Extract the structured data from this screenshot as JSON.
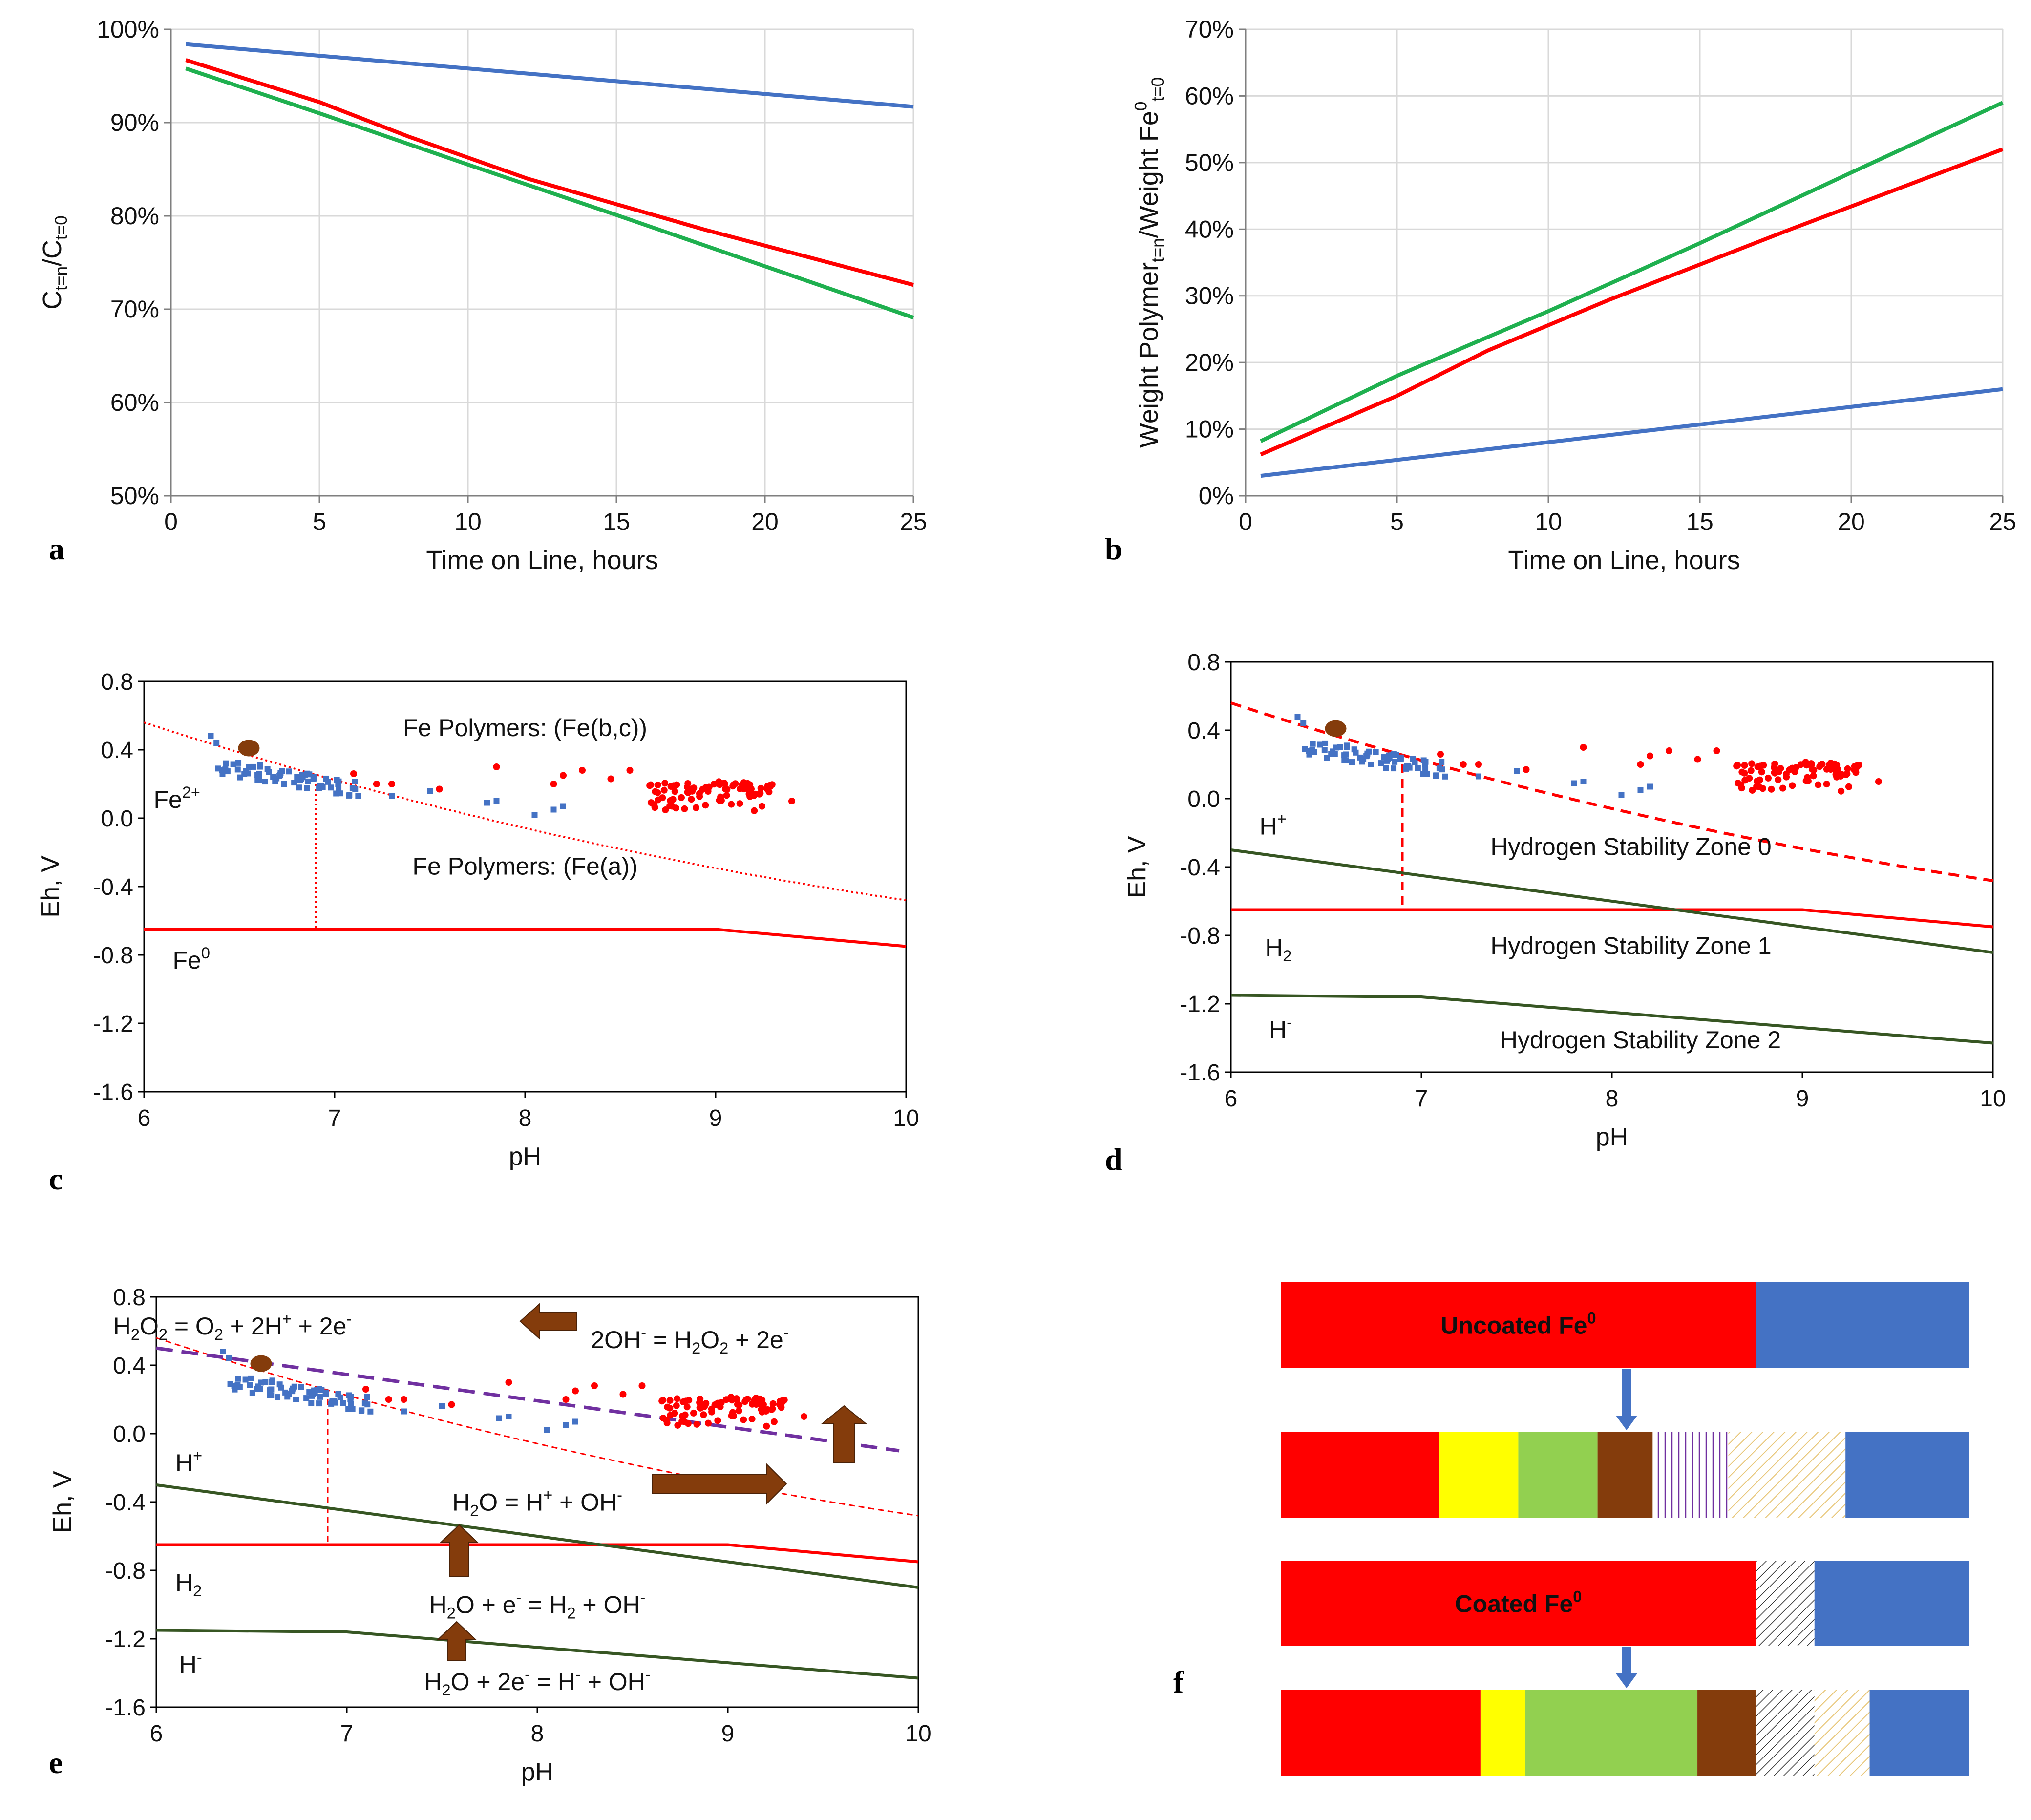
{
  "colors": {
    "blue": "#4472C4",
    "red": "#FF0000",
    "green": "#1FB04F",
    "darkgreen": "#375623",
    "purple": "#7030A0",
    "brown": "#843C0C",
    "yellow": "#FFFF00",
    "lightgreen": "#92D050",
    "gold": "#E8C77A",
    "grid": "#D9D9D9"
  },
  "chart_data": [
    {
      "id": "a",
      "type": "line",
      "panel_label": "a",
      "xlabel": "Time on Line, hours",
      "ylabel_parts": [
        "C",
        "t=n",
        "/C",
        "t=0"
      ],
      "xlim": [
        0,
        25
      ],
      "ylim": [
        50,
        100
      ],
      "xticks": [
        0,
        5,
        10,
        15,
        20,
        25
      ],
      "yticks": [
        50,
        60,
        70,
        80,
        90,
        100
      ],
      "ytick_labels": [
        "50%",
        "60%",
        "70%",
        "80%",
        "90%",
        "100%"
      ],
      "series": [
        {
          "name": "blue",
          "color": "#4472C4",
          "x": [
            0.5,
            25
          ],
          "y": [
            98.4,
            91.7
          ]
        },
        {
          "name": "red",
          "color": "#FF0000",
          "x": [
            0.5,
            5,
            8,
            12,
            18,
            25
          ],
          "y": [
            96.7,
            92.2,
            88.5,
            84,
            78.5,
            72.6
          ]
        },
        {
          "name": "green",
          "color": "#1FB04F",
          "x": [
            0.5,
            5,
            10,
            15,
            20,
            25
          ],
          "y": [
            95.8,
            91,
            85.5,
            80.1,
            74.6,
            69.1
          ]
        }
      ]
    },
    {
      "id": "b",
      "type": "line",
      "panel_label": "b",
      "xlabel": "Time on Line, hours",
      "ylabel_parts": [
        "Weight Polymer",
        "t=n",
        "/Weight Fe",
        "0",
        "t=0"
      ],
      "xlim": [
        0,
        25
      ],
      "ylim": [
        0,
        70
      ],
      "xticks": [
        0,
        5,
        10,
        15,
        20,
        25
      ],
      "yticks": [
        0,
        10,
        20,
        30,
        40,
        50,
        60,
        70
      ],
      "ytick_labels": [
        "0%",
        "10%",
        "20%",
        "30%",
        "40%",
        "50%",
        "60%",
        "70%"
      ],
      "series": [
        {
          "name": "green",
          "color": "#1FB04F",
          "x": [
            0.5,
            5,
            10,
            15,
            20,
            25
          ],
          "y": [
            8.2,
            18,
            27.7,
            37.9,
            48.5,
            59
          ]
        },
        {
          "name": "red",
          "color": "#FF0000",
          "x": [
            0.5,
            5,
            8,
            12,
            18,
            25
          ],
          "y": [
            6.2,
            15,
            21.8,
            29.4,
            40,
            52
          ]
        },
        {
          "name": "blue",
          "color": "#4472C4",
          "x": [
            0.5,
            25
          ],
          "y": [
            3,
            16
          ]
        }
      ]
    },
    {
      "id": "c",
      "type": "scatter",
      "panel_label": "c",
      "xlabel": "pH",
      "ylabel": "Eh, V",
      "xlim": [
        6,
        10
      ],
      "ylim": [
        -1.6,
        0.8
      ],
      "xticks": [
        6,
        7,
        8,
        9,
        10
      ],
      "yticks": [
        -1.6,
        -1.2,
        -0.8,
        -0.4,
        0.0,
        0.4,
        0.8
      ],
      "ytick_labels": [
        "-1.6",
        "-1.2",
        "-0.8",
        "-0.4",
        "0.0",
        "0.4",
        "0.8"
      ],
      "annotations": [
        {
          "text": "Fe Polymers: (Fe(b,c))",
          "x": 8.0,
          "y": 0.48
        },
        {
          "text": "Fe Polymers: (Fe(a))",
          "x": 8.0,
          "y": -0.33
        },
        {
          "text_parts": [
            "Fe",
            "2+"
          ],
          "x": 6.05,
          "y": 0.06
        },
        {
          "text_parts": [
            "Fe",
            "0"
          ],
          "x": 6.15,
          "y": -0.88
        }
      ]
    },
    {
      "id": "d",
      "type": "scatter",
      "panel_label": "d",
      "xlabel": "pH",
      "ylabel": "Eh, V",
      "xlim": [
        6,
        10
      ],
      "ylim": [
        -1.6,
        0.8
      ],
      "xticks": [
        6,
        7,
        8,
        9,
        10
      ],
      "yticks": [
        -1.6,
        -1.2,
        -0.8,
        -0.4,
        0.0,
        0.4,
        0.8
      ],
      "ytick_labels": [
        "-1.6",
        "-1.2",
        "-0.8",
        "-0.4",
        "0.0",
        "0.4",
        "0.8"
      ],
      "annotations": [
        {
          "text": "Hydrogen Stability Zone 0",
          "x": 8.1,
          "y": -0.33
        },
        {
          "text": "Hydrogen Stability Zone 1",
          "x": 8.1,
          "y": -0.91
        },
        {
          "text": "Hydrogen Stability Zone 2",
          "x": 8.15,
          "y": -1.46
        },
        {
          "text_parts": [
            "H",
            "+"
          ],
          "x": 6.15,
          "y": -0.21
        },
        {
          "text_parts": [
            "H",
            "2"
          ],
          "x": 6.18,
          "y": -0.92
        },
        {
          "text_parts": [
            "H",
            "-"
          ],
          "x": 6.2,
          "y": -1.4
        }
      ]
    },
    {
      "id": "e",
      "type": "scatter",
      "panel_label": "e",
      "xlabel": "pH",
      "ylabel": "Eh, V",
      "xlim": [
        6,
        10
      ],
      "ylim": [
        -1.6,
        0.8
      ],
      "xticks": [
        6,
        7,
        8,
        9,
        10
      ],
      "yticks": [
        -1.6,
        -1.2,
        -0.8,
        -0.4,
        0.0,
        0.4,
        0.8
      ],
      "ytick_labels": [
        "-1.6",
        "-1.2",
        "-0.8",
        "-0.4",
        "0.0",
        "0.4",
        "0.8"
      ],
      "annotations": [
        {
          "text_parts": [
            "H",
            "2",
            "O",
            "2",
            " = O",
            "2",
            " + 2H",
            "+",
            " + 2e",
            "-"
          ],
          "x": 6.4,
          "y": 0.58
        },
        {
          "text_parts": [
            "2OH",
            "-",
            " = H",
            "2",
            "O",
            "2",
            " + 2e",
            "-"
          ],
          "x": 8.8,
          "y": 0.5
        },
        {
          "text_parts": [
            "H",
            "2",
            "O = H",
            "+",
            " + OH",
            "-"
          ],
          "x": 8.0,
          "y": -0.45
        },
        {
          "text_parts": [
            "H",
            "2",
            "O + e",
            "-",
            " = H",
            "2",
            " + OH",
            "-"
          ],
          "x": 8.0,
          "y": -1.05
        },
        {
          "text_parts": [
            "H",
            "2",
            "O + 2e",
            "-",
            " = H",
            "-",
            " + OH",
            "-"
          ],
          "x": 8.0,
          "y": -1.5
        },
        {
          "text_parts": [
            "H",
            "+"
          ],
          "x": 6.1,
          "y": -0.22
        },
        {
          "text_parts": [
            "H",
            "2"
          ],
          "x": 6.1,
          "y": -0.92
        },
        {
          "text_parts": [
            "H",
            "-"
          ],
          "x": 6.12,
          "y": -1.4
        }
      ]
    },
    {
      "id": "f",
      "type": "bar",
      "panel_label": "f",
      "bars": [
        {
          "label_parts": [
            "Uncoated Fe",
            "0"
          ],
          "segments": [
            {
              "color": "#FF0000",
              "width": 69
            },
            {
              "color": "#4472C4",
              "width": 31
            }
          ]
        },
        {
          "segments": [
            {
              "color": "#FF0000",
              "width": 23
            },
            {
              "color": "#FFFF00",
              "width": 11.5
            },
            {
              "color": "#92D050",
              "width": 11.5
            },
            {
              "color": "#843C0C",
              "width": 8
            },
            {
              "color": "#7030A0",
              "width": 11,
              "pattern": "vlines"
            },
            {
              "color": "#E8C77A",
              "width": 17,
              "pattern": "diag"
            },
            {
              "color": "#4472C4",
              "width": 18
            }
          ]
        },
        {
          "label_parts": [
            "Coated Fe",
            "0"
          ],
          "segments": [
            {
              "color": "#FF0000",
              "width": 69
            },
            {
              "color": "#333333",
              "width": 8.5,
              "pattern": "diag"
            },
            {
              "color": "#4472C4",
              "width": 22.5
            }
          ]
        },
        {
          "segments": [
            {
              "color": "#FF0000",
              "width": 29
            },
            {
              "color": "#FFFF00",
              "width": 6.5
            },
            {
              "color": "#92D050",
              "width": 25
            },
            {
              "color": "#843C0C",
              "width": 8.5
            },
            {
              "color": "#333333",
              "width": 8.5,
              "pattern": "diag"
            },
            {
              "color": "#E8C77A",
              "width": 8,
              "pattern": "diag"
            },
            {
              "color": "#4472C4",
              "width": 14.5
            }
          ]
        }
      ]
    }
  ]
}
